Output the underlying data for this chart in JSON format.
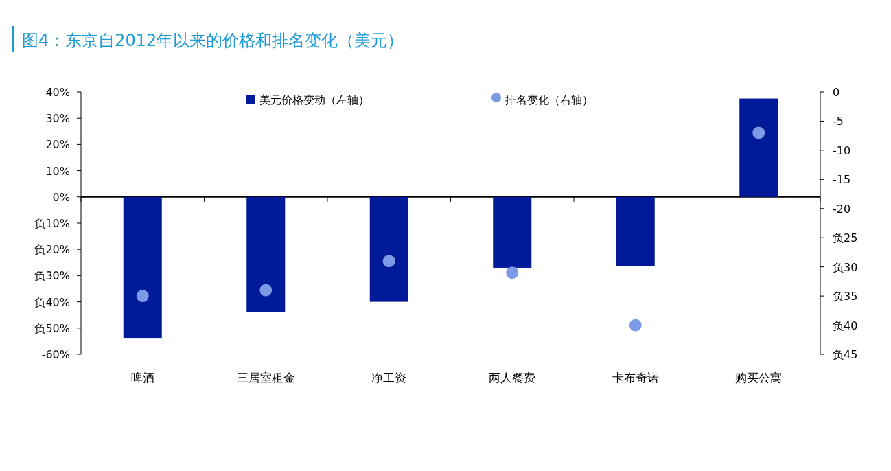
{
  "chart_data": {
    "type": "bar",
    "title": "图4：东京自2012年以来的价格和排名变化（美元）",
    "categories": [
      "啤酒",
      "三居室租金",
      "净工资",
      "两人餐费",
      "卡布奇诺",
      "购买公寓"
    ],
    "series": [
      {
        "name": "美元价格变动（左轴）",
        "color": "#001a9a",
        "values": [
          -54,
          -44,
          -40,
          -27,
          -26.5,
          37.5
        ]
      },
      {
        "name": "排名变化（右轴）",
        "type": "scatter",
        "axis": "y2",
        "color": "#7b9be6",
        "values": [
          -35,
          -34,
          -29,
          -31,
          -40,
          -7
        ]
      }
    ],
    "ylim": [
      -60,
      40
    ],
    "yticks": [
      {
        "value": 40,
        "label": "40%"
      },
      {
        "value": 30,
        "label": "30%"
      },
      {
        "value": 20,
        "label": "20%"
      },
      {
        "value": 10,
        "label": "10%"
      },
      {
        "value": 0,
        "label": "0%"
      },
      {
        "value": -10,
        "label": "负10%"
      },
      {
        "value": -20,
        "label": "负20%"
      },
      {
        "value": -30,
        "label": "负30%"
      },
      {
        "value": -40,
        "label": "负40%"
      },
      {
        "value": -50,
        "label": "负50%"
      },
      {
        "value": -60,
        "label": "-60%"
      }
    ],
    "y2lim": [
      -45,
      0
    ],
    "y2ticks": [
      0,
      -5,
      -10,
      -15,
      -20,
      {
        "value": -25,
        "label": "负25"
      },
      {
        "value": -30,
        "label": "负30"
      },
      {
        "value": -35,
        "label": "负35"
      },
      {
        "value": -40,
        "label": "负40"
      },
      {
        "value": -45,
        "label": "负45"
      }
    ],
    "legend": "top",
    "marker": "circle"
  }
}
